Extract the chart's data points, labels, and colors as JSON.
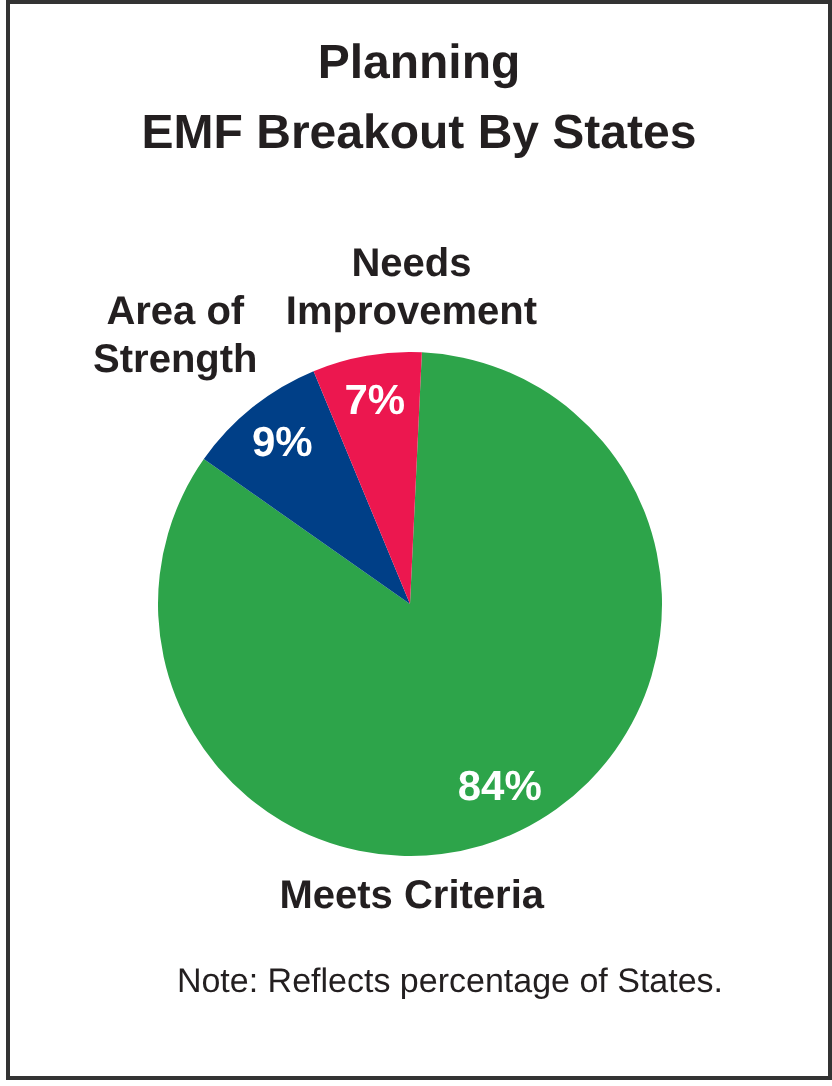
{
  "chart_data": {
    "type": "pie",
    "title": "Planning\nEMF Breakout By States",
    "categories": [
      "Meets Criteria",
      "Area of Strength",
      "Needs Improvement"
    ],
    "values": [
      84,
      9,
      7
    ],
    "colors": [
      "#2da44a",
      "#003f87",
      "#ec174f"
    ],
    "value_labels": [
      "84%",
      "9%",
      "7%"
    ],
    "legend": false,
    "annotations": [
      "Note: Reflects percentage of States."
    ]
  }
}
